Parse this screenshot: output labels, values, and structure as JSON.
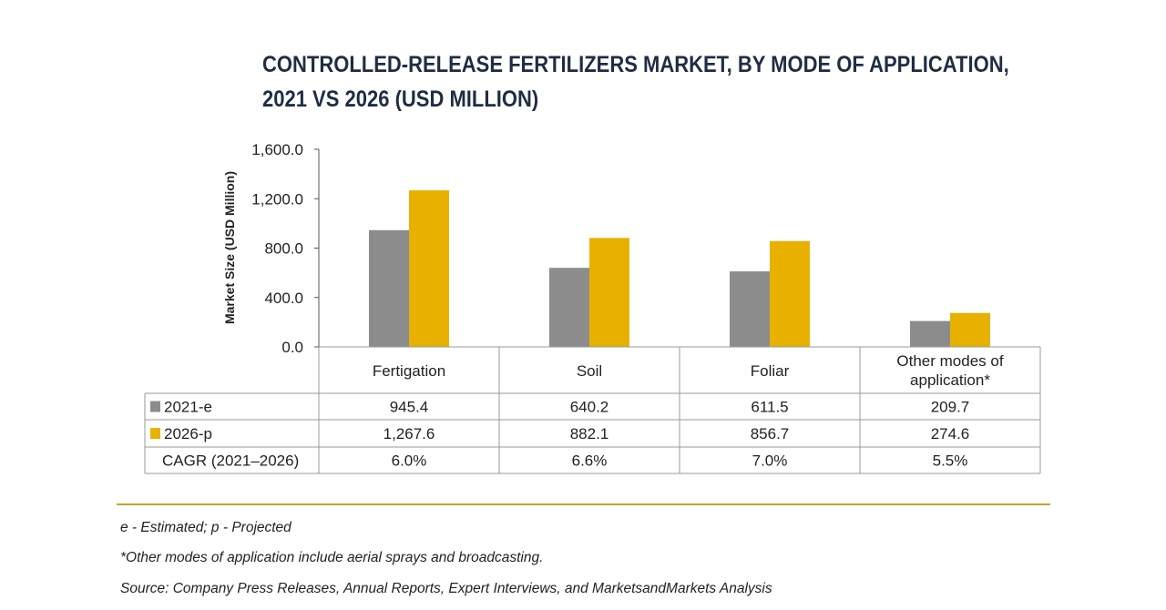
{
  "chart_data": {
    "type": "bar",
    "title_lines": [
      "CONTROLLED-RELEASE FERTILIZERS MARKET, BY MODE OF APPLICATION,",
      "2021 VS 2026 (USD MILLION)"
    ],
    "ylabel": "Market Size (USD Million)",
    "ylim": [
      0,
      1600
    ],
    "yticks": [
      0,
      400,
      800,
      1200,
      1600
    ],
    "ytick_labels": [
      "0.0",
      "400.0",
      "800.0",
      "1,200.0",
      "1,600.0"
    ],
    "categories": [
      "Fertigation",
      "Soil",
      "Foliar",
      "Other modes of application*"
    ],
    "category_label_lines": [
      [
        "Fertigation"
      ],
      [
        "Soil"
      ],
      [
        "Foliar"
      ],
      [
        "Other modes of",
        "application*"
      ]
    ],
    "series": [
      {
        "name": "2021-e",
        "color": "#8c8c8c",
        "values": [
          945.4,
          640.2,
          611.5,
          209.7
        ],
        "labels": [
          "945.4",
          "640.2",
          "611.5",
          "209.7"
        ]
      },
      {
        "name": "2026-p",
        "color": "#e8b100",
        "values": [
          1267.6,
          882.1,
          856.7,
          274.6
        ],
        "labels": [
          "1,267.6",
          "882.1",
          "856.7",
          "274.6"
        ]
      }
    ],
    "extra_row": {
      "name": "CAGR (2021–2026)",
      "values": [
        "6.0%",
        "6.6%",
        "7.0%",
        "5.5%"
      ]
    },
    "grid": false,
    "legend": "data-table"
  },
  "notes": {
    "estimated": "e - Estimated; p - Projected",
    "other_modes": "*Other modes of application include aerial sprays and broadcasting.",
    "source": "Source: Company Press Releases, Annual Reports, Expert Interviews, and MarketsandMarkets Analysis"
  }
}
